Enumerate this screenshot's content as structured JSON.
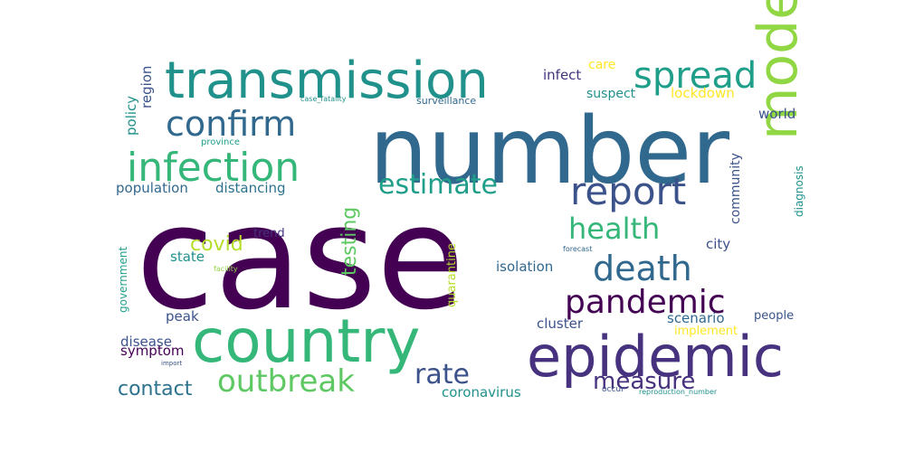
{
  "palette": {
    "dark_purple": "#440154",
    "indigo": "#3b528b",
    "blue": "#31688e",
    "teal_blue": "#2c728e",
    "teal": "#21918c",
    "sea": "#1f9e89",
    "green": "#35b779",
    "light_green": "#5ec962",
    "lime": "#90d743",
    "yellow_green": "#b5de2b",
    "yellow": "#fde725",
    "slate": "#46327e"
  },
  "words": [
    {
      "text": "case",
      "color": "dark_purple"
    },
    {
      "text": "number",
      "color": "blue"
    },
    {
      "text": "country",
      "color": "green"
    },
    {
      "text": "epidemic",
      "color": "slate"
    },
    {
      "text": "transmission",
      "color": "teal"
    },
    {
      "text": "model",
      "color": "lime"
    },
    {
      "text": "infection",
      "color": "green"
    },
    {
      "text": "spread",
      "color": "sea"
    },
    {
      "text": "confirm",
      "color": "blue"
    },
    {
      "text": "report",
      "color": "indigo"
    },
    {
      "text": "death",
      "color": "blue"
    },
    {
      "text": "pandemic",
      "color": "dark_purple"
    },
    {
      "text": "outbreak",
      "color": "light_green"
    },
    {
      "text": "estimate",
      "color": "sea"
    },
    {
      "text": "health",
      "color": "green"
    },
    {
      "text": "rate",
      "color": "indigo"
    },
    {
      "text": "measure",
      "color": "slate"
    },
    {
      "text": "contact",
      "color": "teal_blue"
    },
    {
      "text": "covid",
      "color": "yellow_green"
    },
    {
      "text": "testing",
      "color": "light_green"
    },
    {
      "text": "population",
      "color": "blue"
    },
    {
      "text": "distancing",
      "color": "teal_blue"
    },
    {
      "text": "scenario",
      "color": "blue"
    },
    {
      "text": "isolation",
      "color": "blue"
    },
    {
      "text": "coronavirus",
      "color": "teal"
    },
    {
      "text": "disease",
      "color": "indigo"
    },
    {
      "text": "symptom",
      "color": "dark_purple"
    },
    {
      "text": "cluster",
      "color": "indigo"
    },
    {
      "text": "peak",
      "color": "indigo"
    },
    {
      "text": "quarantine",
      "color": "yellow_green"
    },
    {
      "text": "state",
      "color": "teal"
    },
    {
      "text": "city",
      "color": "indigo"
    },
    {
      "text": "world",
      "color": "indigo"
    },
    {
      "text": "lockdown",
      "color": "yellow"
    },
    {
      "text": "suspect",
      "color": "teal"
    },
    {
      "text": "infect",
      "color": "slate"
    },
    {
      "text": "care",
      "color": "yellow"
    },
    {
      "text": "community",
      "color": "indigo"
    },
    {
      "text": "diagnosis",
      "color": "teal"
    },
    {
      "text": "policy",
      "color": "teal"
    },
    {
      "text": "region",
      "color": "indigo"
    },
    {
      "text": "government",
      "color": "sea"
    },
    {
      "text": "implement",
      "color": "yellow"
    },
    {
      "text": "people",
      "color": "indigo"
    },
    {
      "text": "trend",
      "color": "slate"
    },
    {
      "text": "surveillance",
      "color": "blue"
    },
    {
      "text": "province",
      "color": "sea"
    },
    {
      "text": "case_fatality",
      "color": "teal"
    },
    {
      "text": "forecast",
      "color": "blue"
    },
    {
      "text": "facility",
      "color": "lime"
    },
    {
      "text": "import",
      "color": "indigo"
    },
    {
      "text": "occur",
      "color": "indigo"
    },
    {
      "text": "reproduction_number",
      "color": "teal"
    }
  ]
}
